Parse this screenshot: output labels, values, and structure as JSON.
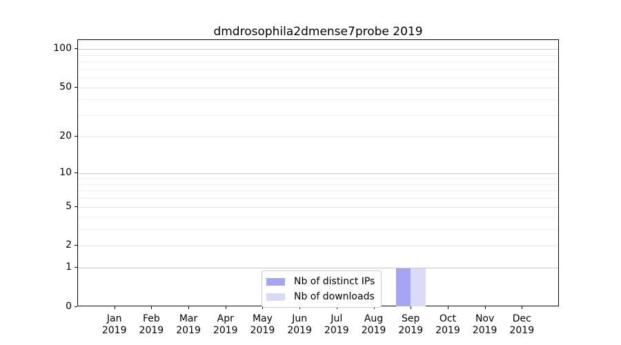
{
  "chart_data": {
    "type": "bar",
    "title": "dmdrosophila2dmense7probe 2019",
    "year_label": "2019",
    "categories": [
      "Jan",
      "Feb",
      "Mar",
      "Apr",
      "May",
      "Jun",
      "Jul",
      "Aug",
      "Sep",
      "Oct",
      "Nov",
      "Dec"
    ],
    "series": [
      {
        "name": "Nb of distinct IPs",
        "color": "#a5a5f2",
        "values": [
          0,
          0,
          0,
          0,
          0,
          0,
          0,
          0,
          1,
          0,
          0,
          0
        ]
      },
      {
        "name": "Nb of downloads",
        "color": "#dadaf9",
        "values": [
          0,
          0,
          0,
          0,
          0,
          0,
          0,
          0,
          1,
          0,
          0,
          0
        ]
      }
    ],
    "xlabel": "",
    "ylabel": "",
    "y_scale": "log1p",
    "ylim": [
      0,
      119
    ],
    "y_ticks": [
      0,
      1,
      2,
      5,
      10,
      20,
      50,
      100
    ],
    "y_minor_gridlines": [
      3,
      4,
      6,
      7,
      8,
      9,
      30,
      40,
      60,
      70,
      80,
      90
    ],
    "y_emphasized_gridlines": [
      1,
      10,
      100
    ],
    "grid": true,
    "legend_position": "lower center",
    "colors": {
      "grid_emphasized": "#c8c8c8",
      "grid_regular": "#ececec",
      "axis": "#000000",
      "text": "#000000",
      "legend_border": "#cccccc",
      "background": "#ffffff"
    }
  }
}
